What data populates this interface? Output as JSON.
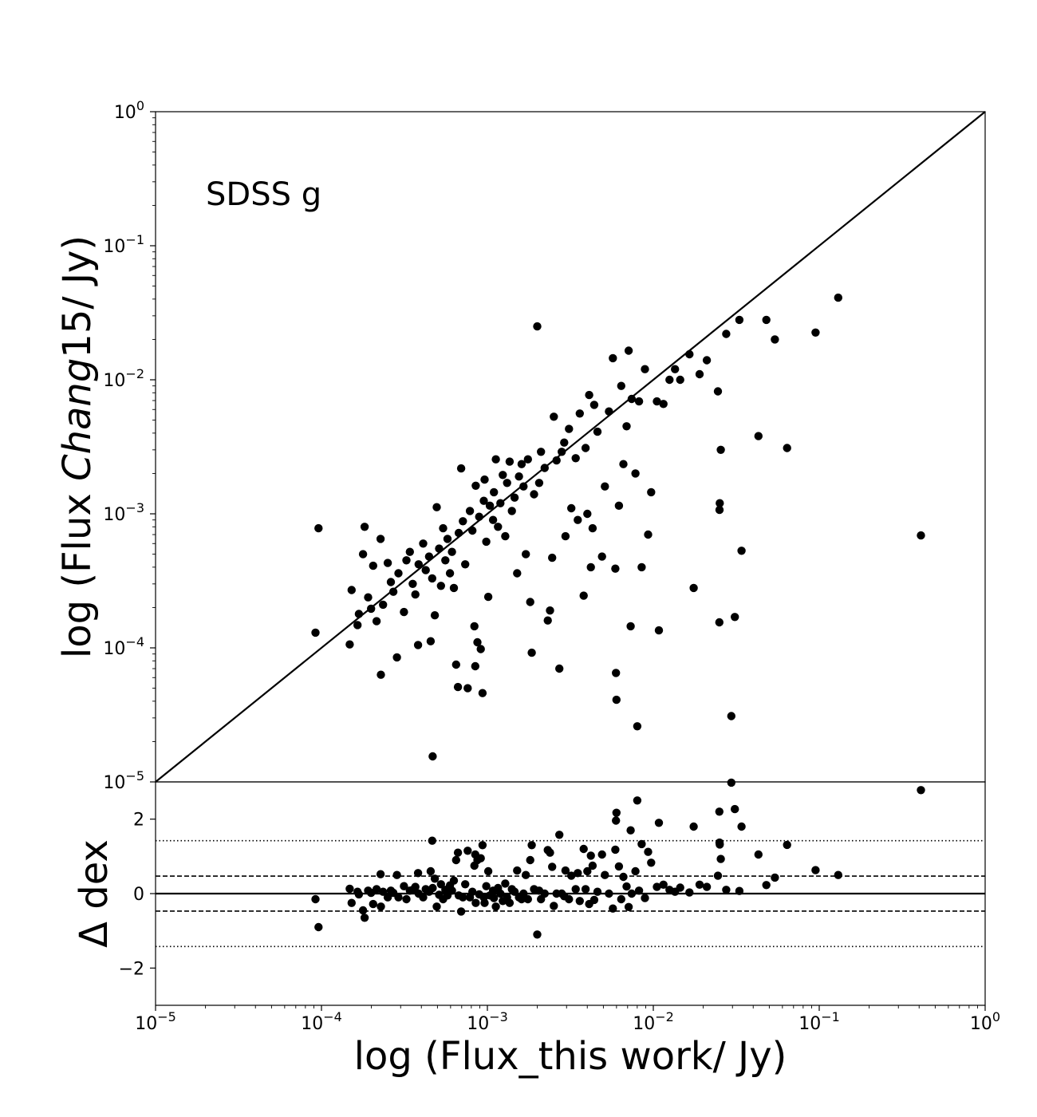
{
  "chart_data": [
    {
      "type": "scatter",
      "panel": "main",
      "title": "",
      "annotation": "SDSS g",
      "xlabel": "",
      "ylabel_parts": [
        "log (Flux ",
        "Chang",
        "15/ Jy)"
      ],
      "xscale": "log",
      "yscale": "log",
      "xlim": [
        1e-05,
        1
      ],
      "ylim": [
        1e-05,
        1
      ],
      "x_tick_labels": [
        "10^-5",
        "10^-4",
        "10^-3",
        "10^-2",
        "10^-1",
        "10^0"
      ],
      "y_tick_labels": [
        "10^-5",
        "10^-4",
        "10^-3",
        "10^-2",
        "10^-1",
        "10^0"
      ],
      "reference_line": "y = x",
      "grid": false,
      "legend": "none",
      "points": [
        [
          9.2e-05,
          0.00013
        ],
        [
          9.6e-05,
          0.00078
        ],
        [
          0.000148,
          0.000106
        ],
        [
          0.000152,
          0.00027
        ],
        [
          0.000165,
          0.000148
        ],
        [
          0.000168,
          0.000179
        ],
        [
          0.000178,
          0.0005
        ],
        [
          0.000182,
          0.0008
        ],
        [
          0.000191,
          0.000238
        ],
        [
          0.000199,
          0.000196
        ],
        [
          0.000205,
          0.00041
        ],
        [
          0.000215,
          0.000158
        ],
        [
          0.000227,
          0.00065
        ],
        [
          0.000228,
          6.3e-05
        ],
        [
          0.000235,
          0.00021
        ],
        [
          0.000251,
          0.00043
        ],
        [
          0.000262,
          0.00031
        ],
        [
          0.000271,
          0.000262
        ],
        [
          0.000285,
          8.5e-05
        ],
        [
          0.000291,
          0.00036
        ],
        [
          0.000314,
          0.000185
        ],
        [
          0.000325,
          0.00045
        ],
        [
          0.000341,
          0.00052
        ],
        [
          0.000355,
          0.0003
        ],
        [
          0.000368,
          0.00025
        ],
        [
          0.000382,
          0.000105
        ],
        [
          0.000385,
          0.00042
        ],
        [
          0.00041,
          0.0006
        ],
        [
          0.000425,
          0.00038
        ],
        [
          0.000445,
          0.00048
        ],
        [
          0.000455,
          0.000112
        ],
        [
          0.000465,
          0.00033
        ],
        [
          0.000468,
          1.55e-05
        ],
        [
          0.000482,
          0.000175
        ],
        [
          0.000495,
          0.00112
        ],
        [
          0.000512,
          0.00055
        ],
        [
          0.000525,
          0.00029
        ],
        [
          0.000541,
          0.00078
        ],
        [
          0.000558,
          0.00045
        ],
        [
          0.000575,
          0.00065
        ],
        [
          0.000595,
          0.00036
        ],
        [
          0.000612,
          0.00052
        ],
        [
          0.000628,
          0.00028
        ],
        [
          0.000648,
          7.5e-05
        ],
        [
          0.000665,
          5.1e-05
        ],
        [
          0.000672,
          0.00072
        ],
        [
          0.000695,
          0.00218
        ],
        [
          0.000712,
          0.00088
        ],
        [
          0.000735,
          0.00042
        ],
        [
          0.000761,
          5e-05
        ],
        [
          0.000785,
          0.00105
        ],
        [
          0.000812,
          0.00075
        ],
        [
          0.000835,
          0.000145
        ],
        [
          0.000845,
          7.3e-05
        ],
        [
          0.000851,
          0.00162
        ],
        [
          0.000871,
          0.00011
        ],
        [
          0.000892,
          0.00095
        ],
        [
          0.000912,
          9.8e-05
        ],
        [
          0.000935,
          4.6e-05
        ],
        [
          0.000951,
          0.00125
        ],
        [
          0.000962,
          0.0018
        ],
        [
          0.000985,
          0.00062
        ],
        [
          0.001012,
          0.00024
        ],
        [
          0.001035,
          0.00115
        ],
        [
          0.001082,
          0.0009
        ],
        [
          0.001095,
          0.00145
        ],
        [
          0.001125,
          0.00255
        ],
        [
          0.001158,
          0.0008
        ],
        [
          0.001198,
          0.0012
        ],
        [
          0.001238,
          0.00195
        ],
        [
          0.001281,
          0.00068
        ],
        [
          0.001315,
          0.0017
        ],
        [
          0.001362,
          0.00245
        ],
        [
          0.001405,
          0.00105
        ],
        [
          0.001458,
          0.00132
        ],
        [
          0.001512,
          0.00036
        ],
        [
          0.001551,
          0.0019
        ],
        [
          0.001608,
          0.00235
        ],
        [
          0.001652,
          0.0016
        ],
        [
          0.001705,
          0.0005
        ],
        [
          0.001755,
          0.00255
        ],
        [
          0.001812,
          0.00022
        ],
        [
          0.001851,
          9.2e-05
        ],
        [
          0.001912,
          0.0014
        ],
        [
          0.001998,
          0.025
        ],
        [
          0.002052,
          0.0017
        ],
        [
          0.002105,
          0.0029
        ],
        [
          0.002215,
          0.0022
        ],
        [
          0.002312,
          0.00016
        ],
        [
          0.002385,
          0.00019
        ],
        [
          0.002458,
          0.00047
        ],
        [
          0.002515,
          0.0053
        ],
        [
          0.002612,
          0.0025
        ],
        [
          0.002715,
          7e-05
        ],
        [
          0.002805,
          0.0029
        ],
        [
          0.002905,
          0.0034
        ],
        [
          0.002955,
          0.00068
        ],
        [
          0.003105,
          0.0043
        ],
        [
          0.003205,
          0.0011
        ],
        [
          0.003405,
          0.0026
        ],
        [
          0.003505,
          0.0009
        ],
        [
          0.003605,
          0.0056
        ],
        [
          0.003805,
          0.000245
        ],
        [
          0.003905,
          0.0031
        ],
        [
          0.004005,
          0.001
        ],
        [
          0.004105,
          0.0077
        ],
        [
          0.004205,
          0.0004
        ],
        [
          0.004305,
          0.00078
        ],
        [
          0.004405,
          0.0065
        ],
        [
          0.004605,
          0.0041
        ],
        [
          0.004905,
          0.00048
        ],
        [
          0.005105,
          0.0016
        ],
        [
          0.005405,
          0.0058
        ],
        [
          0.005705,
          0.0145
        ],
        [
          0.005905,
          0.00039
        ],
        [
          0.005955,
          6.5e-05
        ],
        [
          0.005995,
          4.1e-05
        ],
        [
          0.006205,
          0.00115
        ],
        [
          0.006405,
          0.009
        ],
        [
          0.006605,
          0.00235
        ],
        [
          0.006905,
          0.0045
        ],
        [
          0.007105,
          0.0165
        ],
        [
          0.007305,
          0.000145
        ],
        [
          0.007405,
          0.0072
        ],
        [
          0.007805,
          0.002
        ],
        [
          0.008005,
          2.6e-05
        ],
        [
          0.008205,
          0.0069
        ],
        [
          0.008505,
          0.0004
        ],
        [
          0.008905,
          0.012
        ],
        [
          0.009305,
          0.0007
        ],
        [
          0.009705,
          0.00145
        ],
        [
          0.01051,
          0.0069
        ],
        [
          0.01081,
          0.000135
        ],
        [
          0.01151,
          0.0066
        ],
        [
          0.01252,
          0.01
        ],
        [
          0.01351,
          0.012
        ],
        [
          0.01452,
          0.01
        ],
        [
          0.01651,
          0.0155
        ],
        [
          0.01751,
          0.00028
        ],
        [
          0.01901,
          0.011
        ],
        [
          0.02101,
          0.014
        ],
        [
          0.02451,
          0.0082
        ],
        [
          0.02501,
          0.000155
        ],
        [
          0.02505,
          0.00107
        ],
        [
          0.02515,
          0.0012
        ],
        [
          0.02551,
          0.003
        ],
        [
          0.02752,
          0.022
        ],
        [
          0.02952,
          3.1e-05
        ],
        [
          0.03101,
          0.00017
        ],
        [
          0.03302,
          0.028
        ],
        [
          0.03402,
          0.00053
        ],
        [
          0.04302,
          0.0038
        ],
        [
          0.04802,
          0.028
        ],
        [
          0.05402,
          0.02
        ],
        [
          0.06402,
          0.0031
        ],
        [
          0.09505,
          0.0225
        ],
        [
          0.1302,
          0.041
        ],
        [
          0.4102,
          0.00069
        ]
      ]
    },
    {
      "type": "scatter",
      "panel": "residual",
      "title": "",
      "xlabel": "log (Flux_this work/ Jy)",
      "ylabel": "Δ dex",
      "xscale": "log",
      "xlim": [
        1e-05,
        1
      ],
      "ylim": [
        -3,
        3
      ],
      "y_ticks": [
        -2,
        0,
        2
      ],
      "y_tick_labels": [
        "−2",
        "0",
        "2"
      ],
      "x_tick_labels": [
        "10^-5",
        "10^-4",
        "10^-3",
        "10^-2",
        "10^-1",
        "10^0"
      ],
      "reference_lines": [
        {
          "y": 0,
          "style": "solid"
        },
        {
          "y": 0.47,
          "style": "dashed"
        },
        {
          "y": -0.47,
          "style": "dashed"
        },
        {
          "y": 1.42,
          "style": "dotted"
        },
        {
          "y": -1.42,
          "style": "dotted"
        }
      ],
      "grid": false,
      "legend": "none",
      "points": [
        [
          9.2e-05,
          -0.15
        ],
        [
          9.6e-05,
          -0.9
        ],
        [
          0.000148,
          0.13
        ],
        [
          0.000152,
          -0.25
        ],
        [
          0.000165,
          0.05
        ],
        [
          0.000168,
          -0.02
        ],
        [
          0.000178,
          -0.45
        ],
        [
          0.000182,
          -0.65
        ],
        [
          0.000191,
          0.08
        ],
        [
          0.000199,
          0.02
        ],
        [
          0.000205,
          -0.28
        ],
        [
          0.000215,
          0.12
        ],
        [
          0.000227,
          0.52
        ],
        [
          0.000228,
          -0.35
        ],
        [
          0.000235,
          0.05
        ],
        [
          0.000251,
          -0.1
        ],
        [
          0.000262,
          0.08
        ],
        [
          0.000271,
          0.02
        ],
        [
          0.000285,
          0.5
        ],
        [
          0.000291,
          -0.1
        ],
        [
          0.000314,
          0.2
        ],
        [
          0.000325,
          -0.15
        ],
        [
          0.000341,
          0.08
        ],
        [
          0.000355,
          0.1
        ],
        [
          0.000368,
          0.18
        ],
        [
          0.000382,
          0.55
        ],
        [
          0.000385,
          0.0
        ],
        [
          0.00041,
          -0.1
        ],
        [
          0.000425,
          0.12
        ],
        [
          0.000445,
          0.05
        ],
        [
          0.000455,
          0.6
        ],
        [
          0.000465,
          1.42
        ],
        [
          0.000468,
          0.15
        ],
        [
          0.000482,
          0.4
        ],
        [
          0.000495,
          -0.35
        ],
        [
          0.000512,
          -0.03
        ],
        [
          0.000525,
          0.25
        ],
        [
          0.000541,
          -0.15
        ],
        [
          0.000558,
          0.1
        ],
        [
          0.000575,
          -0.05
        ],
        [
          0.000595,
          0.22
        ],
        [
          0.000612,
          0.08
        ],
        [
          0.000628,
          0.35
        ],
        [
          0.000648,
          0.9
        ],
        [
          0.000665,
          1.1
        ],
        [
          0.000672,
          -0.05
        ],
        [
          0.000695,
          -0.48
        ],
        [
          0.000712,
          -0.1
        ],
        [
          0.000735,
          0.25
        ],
        [
          0.000761,
          1.15
        ],
        [
          0.000785,
          -0.1
        ],
        [
          0.000812,
          0.05
        ],
        [
          0.000835,
          0.75
        ],
        [
          0.000845,
          1.05
        ],
        [
          0.000851,
          -0.25
        ],
        [
          0.000871,
          0.9
        ],
        [
          0.000892,
          -0.02
        ],
        [
          0.000912,
          0.95
        ],
        [
          0.000935,
          1.3
        ],
        [
          0.000951,
          -0.1
        ],
        [
          0.000962,
          -0.25
        ],
        [
          0.000985,
          0.2
        ],
        [
          0.001012,
          0.6
        ],
        [
          0.001035,
          -0.05
        ],
        [
          0.001082,
          0.08
        ],
        [
          0.001095,
          -0.12
        ],
        [
          0.001125,
          -0.35
        ],
        [
          0.001158,
          0.15
        ],
        [
          0.001198,
          0.0
        ],
        [
          0.001238,
          -0.2
        ],
        [
          0.001281,
          0.27
        ],
        [
          0.001315,
          -0.1
        ],
        [
          0.001362,
          -0.25
        ],
        [
          0.001405,
          0.12
        ],
        [
          0.001458,
          0.05
        ],
        [
          0.001512,
          0.62
        ],
        [
          0.001551,
          -0.1
        ],
        [
          0.001608,
          -0.15
        ],
        [
          0.001652,
          0.0
        ],
        [
          0.001705,
          0.5
        ],
        [
          0.001755,
          -0.15
        ],
        [
          0.001812,
          0.9
        ],
        [
          0.001851,
          1.3
        ],
        [
          0.001912,
          0.12
        ],
        [
          0.001998,
          -1.1
        ],
        [
          0.002052,
          0.08
        ],
        [
          0.002105,
          -0.15
        ],
        [
          0.002215,
          0.0
        ],
        [
          0.002312,
          1.17
        ],
        [
          0.002385,
          1.1
        ],
        [
          0.002458,
          0.72
        ],
        [
          0.002515,
          -0.33
        ],
        [
          0.002612,
          0.0
        ],
        [
          0.002715,
          1.58
        ],
        [
          0.002805,
          0.0
        ],
        [
          0.002905,
          -0.07
        ],
        [
          0.002955,
          0.62
        ],
        [
          0.003105,
          -0.15
        ],
        [
          0.003205,
          0.48
        ],
        [
          0.003405,
          0.12
        ],
        [
          0.003505,
          0.55
        ],
        [
          0.003605,
          -0.2
        ],
        [
          0.003805,
          1.2
        ],
        [
          0.003905,
          0.12
        ],
        [
          0.004005,
          0.6
        ],
        [
          0.004105,
          -0.28
        ],
        [
          0.004205,
          1.02
        ],
        [
          0.004305,
          0.75
        ],
        [
          0.004405,
          -0.17
        ],
        [
          0.004605,
          0.05
        ],
        [
          0.004905,
          1.05
        ],
        [
          0.005105,
          0.5
        ],
        [
          0.005405,
          0.0
        ],
        [
          0.005705,
          -0.4
        ],
        [
          0.005905,
          1.18
        ],
        [
          0.005955,
          1.96
        ],
        [
          0.005995,
          2.17
        ],
        [
          0.006205,
          0.73
        ],
        [
          0.006405,
          -0.15
        ],
        [
          0.006605,
          0.45
        ],
        [
          0.006905,
          0.19
        ],
        [
          0.007105,
          -0.36
        ],
        [
          0.007305,
          1.7
        ],
        [
          0.007405,
          0.0
        ],
        [
          0.007805,
          0.6
        ],
        [
          0.008005,
          2.5
        ],
        [
          0.008205,
          0.08
        ],
        [
          0.008505,
          1.33
        ],
        [
          0.008905,
          -0.12
        ],
        [
          0.009305,
          1.12
        ],
        [
          0.009705,
          0.83
        ],
        [
          0.01051,
          0.18
        ],
        [
          0.01081,
          1.9
        ],
        [
          0.01151,
          0.24
        ],
        [
          0.01252,
          0.1
        ],
        [
          0.01351,
          0.05
        ],
        [
          0.01452,
          0.16
        ],
        [
          0.01651,
          0.03
        ],
        [
          0.01751,
          1.8
        ],
        [
          0.01901,
          0.24
        ],
        [
          0.02101,
          0.18
        ],
        [
          0.02451,
          0.48
        ],
        [
          0.02501,
          2.2
        ],
        [
          0.02505,
          1.37
        ],
        [
          0.02515,
          1.32
        ],
        [
          0.02551,
          0.93
        ],
        [
          0.02752,
          0.1
        ],
        [
          0.02952,
          2.98
        ],
        [
          0.03101,
          2.27
        ],
        [
          0.03302,
          0.07
        ],
        [
          0.03402,
          1.8
        ],
        [
          0.04302,
          1.05
        ],
        [
          0.04802,
          0.23
        ],
        [
          0.05402,
          0.43
        ],
        [
          0.06402,
          1.31
        ],
        [
          0.09505,
          0.63
        ],
        [
          0.1302,
          0.5
        ],
        [
          0.4102,
          2.78
        ]
      ]
    }
  ]
}
